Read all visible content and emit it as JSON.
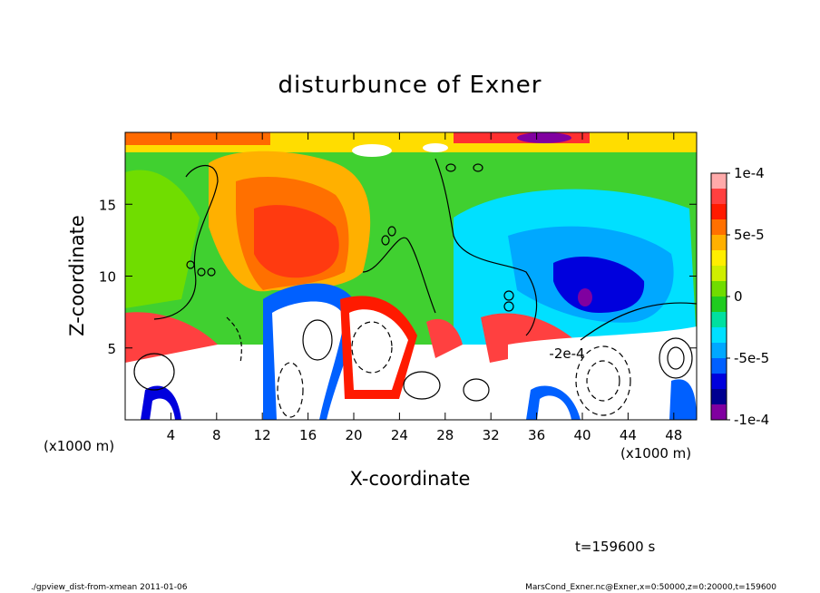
{
  "chart_data": {
    "type": "heatmap",
    "title": "disturbunce of Exner",
    "xlabel": "X-coordinate",
    "ylabel": "Z-coordinate",
    "x_unit": "(x1000 m)",
    "xlim": [
      0,
      50
    ],
    "ylim": [
      0,
      20
    ],
    "x_ticks": [
      "4",
      "8",
      "12",
      "16",
      "20",
      "24",
      "28",
      "32",
      "36",
      "40",
      "44",
      "48"
    ],
    "y_ticks": [
      "5",
      "10",
      "15"
    ],
    "colorbar": {
      "range": [
        -0.0001,
        0.0001
      ],
      "ticks": [
        "1e-4",
        "5e-5",
        "0",
        "-5e-5",
        "-1e-4"
      ],
      "colors": [
        "#ffaaaa",
        "#ff4040",
        "#ff1a00",
        "#ff7000",
        "#ffb000",
        "#ffee00",
        "#cfee00",
        "#70dd00",
        "#20cc20",
        "#00e0a0",
        "#00e0ff",
        "#00a8ff",
        "#0060ff",
        "#0000dd",
        "#000090",
        "#8000a0"
      ]
    },
    "contour_annotation": "-2e-4",
    "time_label": "t=159600 s",
    "footer_left": "./gpview_dist-from-xmean  2011-01-06",
    "footer_right": "MarsCond_Exner.nc@Exner,x=0:50000,z=0:20000,t=159600"
  }
}
